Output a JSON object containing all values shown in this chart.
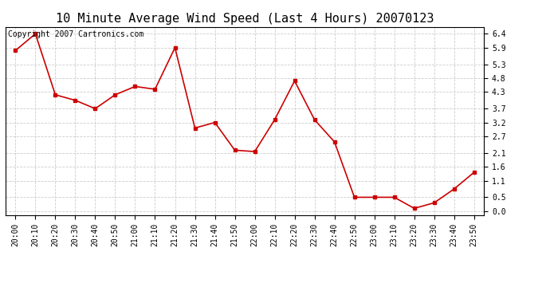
{
  "title": "10 Minute Average Wind Speed (Last 4 Hours) 20070123",
  "copyright": "Copyright 2007 Cartronics.com",
  "x_labels": [
    "20:00",
    "20:10",
    "20:20",
    "20:30",
    "20:40",
    "20:50",
    "21:00",
    "21:10",
    "21:20",
    "21:30",
    "21:40",
    "21:50",
    "22:00",
    "22:10",
    "22:20",
    "22:30",
    "22:40",
    "22:50",
    "23:00",
    "23:10",
    "23:20",
    "23:30",
    "23:40",
    "23:50"
  ],
  "y_values": [
    5.8,
    6.4,
    4.2,
    4.0,
    3.7,
    4.2,
    4.5,
    4.4,
    5.9,
    3.0,
    3.2,
    2.2,
    2.15,
    3.3,
    4.7,
    3.3,
    2.5,
    0.5,
    0.5,
    0.5,
    0.1,
    0.3,
    0.8,
    1.4
  ],
  "line_color": "#cc0000",
  "marker": "s",
  "marker_size": 2.5,
  "line_width": 1.2,
  "background_color": "#ffffff",
  "plot_bg_color": "#ffffff",
  "grid_color": "#cccccc",
  "grid_style": "--",
  "y_ticks": [
    0.0,
    0.5,
    1.1,
    1.6,
    2.1,
    2.7,
    3.2,
    3.7,
    4.3,
    4.8,
    5.3,
    5.9,
    6.4
  ],
  "ylim": [
    -0.15,
    6.65
  ],
  "title_fontsize": 11,
  "tick_fontsize": 7,
  "copyright_fontsize": 7
}
